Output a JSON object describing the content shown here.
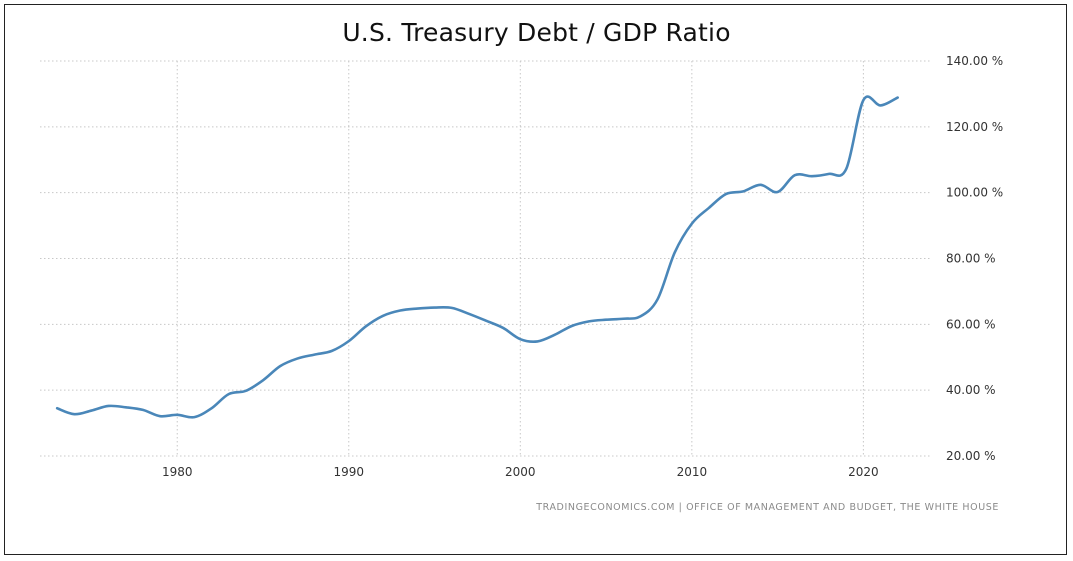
{
  "source_text": "TRADINGECONOMICS.COM  |  OFFICE OF MANAGEMENT AND BUDGET, THE WHITE HOUSE",
  "colors": {
    "line": "#4a87b9",
    "grid": "#c8c8c8",
    "tick_text": "#333333",
    "source_text": "#8a8a8a"
  },
  "chart_data": {
    "type": "line",
    "title": "U.S. Treasury Debt / GDP Ratio",
    "xlabel": "",
    "ylabel": "",
    "xlim": [
      1972,
      2024
    ],
    "ylim": [
      20,
      140
    ],
    "grid": true,
    "y_axis_side": "right",
    "x_ticks": [
      1980,
      1990,
      2000,
      2010,
      2020
    ],
    "x_tick_labels": [
      "1980",
      "1990",
      "2000",
      "2010",
      "2020"
    ],
    "y_ticks": [
      20,
      40,
      60,
      80,
      100,
      120,
      140
    ],
    "y_tick_labels": [
      "20.00 %",
      "40.00 %",
      "60.00 %",
      "80.00 %",
      "100.00 %",
      "120.00 %",
      "140.00 %"
    ],
    "series": [
      {
        "x": [
          1973,
          1974,
          1975,
          1976,
          1977,
          1978,
          1979,
          1980,
          1981,
          1982,
          1983,
          1984,
          1985,
          1986,
          1987,
          1988,
          1989,
          1990,
          1991,
          1992,
          1993,
          1994,
          1995,
          1996,
          1997,
          1998,
          1999,
          2000,
          2001,
          2002,
          2003,
          2004,
          2005,
          2006,
          2007,
          2008,
          2009,
          2010,
          2011,
          2012,
          2013,
          2014,
          2015,
          2016,
          2017,
          2018,
          2019,
          2020,
          2021,
          2022
        ],
        "values": [
          34.5,
          32.7,
          33.8,
          35.2,
          34.8,
          34.0,
          32.1,
          32.5,
          31.8,
          34.5,
          38.8,
          39.8,
          43.0,
          47.3,
          49.6,
          50.8,
          51.9,
          54.9,
          59.4,
          62.6,
          64.2,
          64.8,
          65.1,
          65.0,
          63.2,
          61.1,
          58.9,
          55.5,
          54.8,
          56.8,
          59.5,
          60.9,
          61.4,
          61.7,
          62.4,
          67.6,
          81.8,
          90.6,
          95.4,
          99.6,
          100.4,
          102.4,
          100.2,
          105.3,
          105.0,
          105.7,
          107.2,
          128.1,
          126.5,
          128.9
        ]
      }
    ]
  }
}
